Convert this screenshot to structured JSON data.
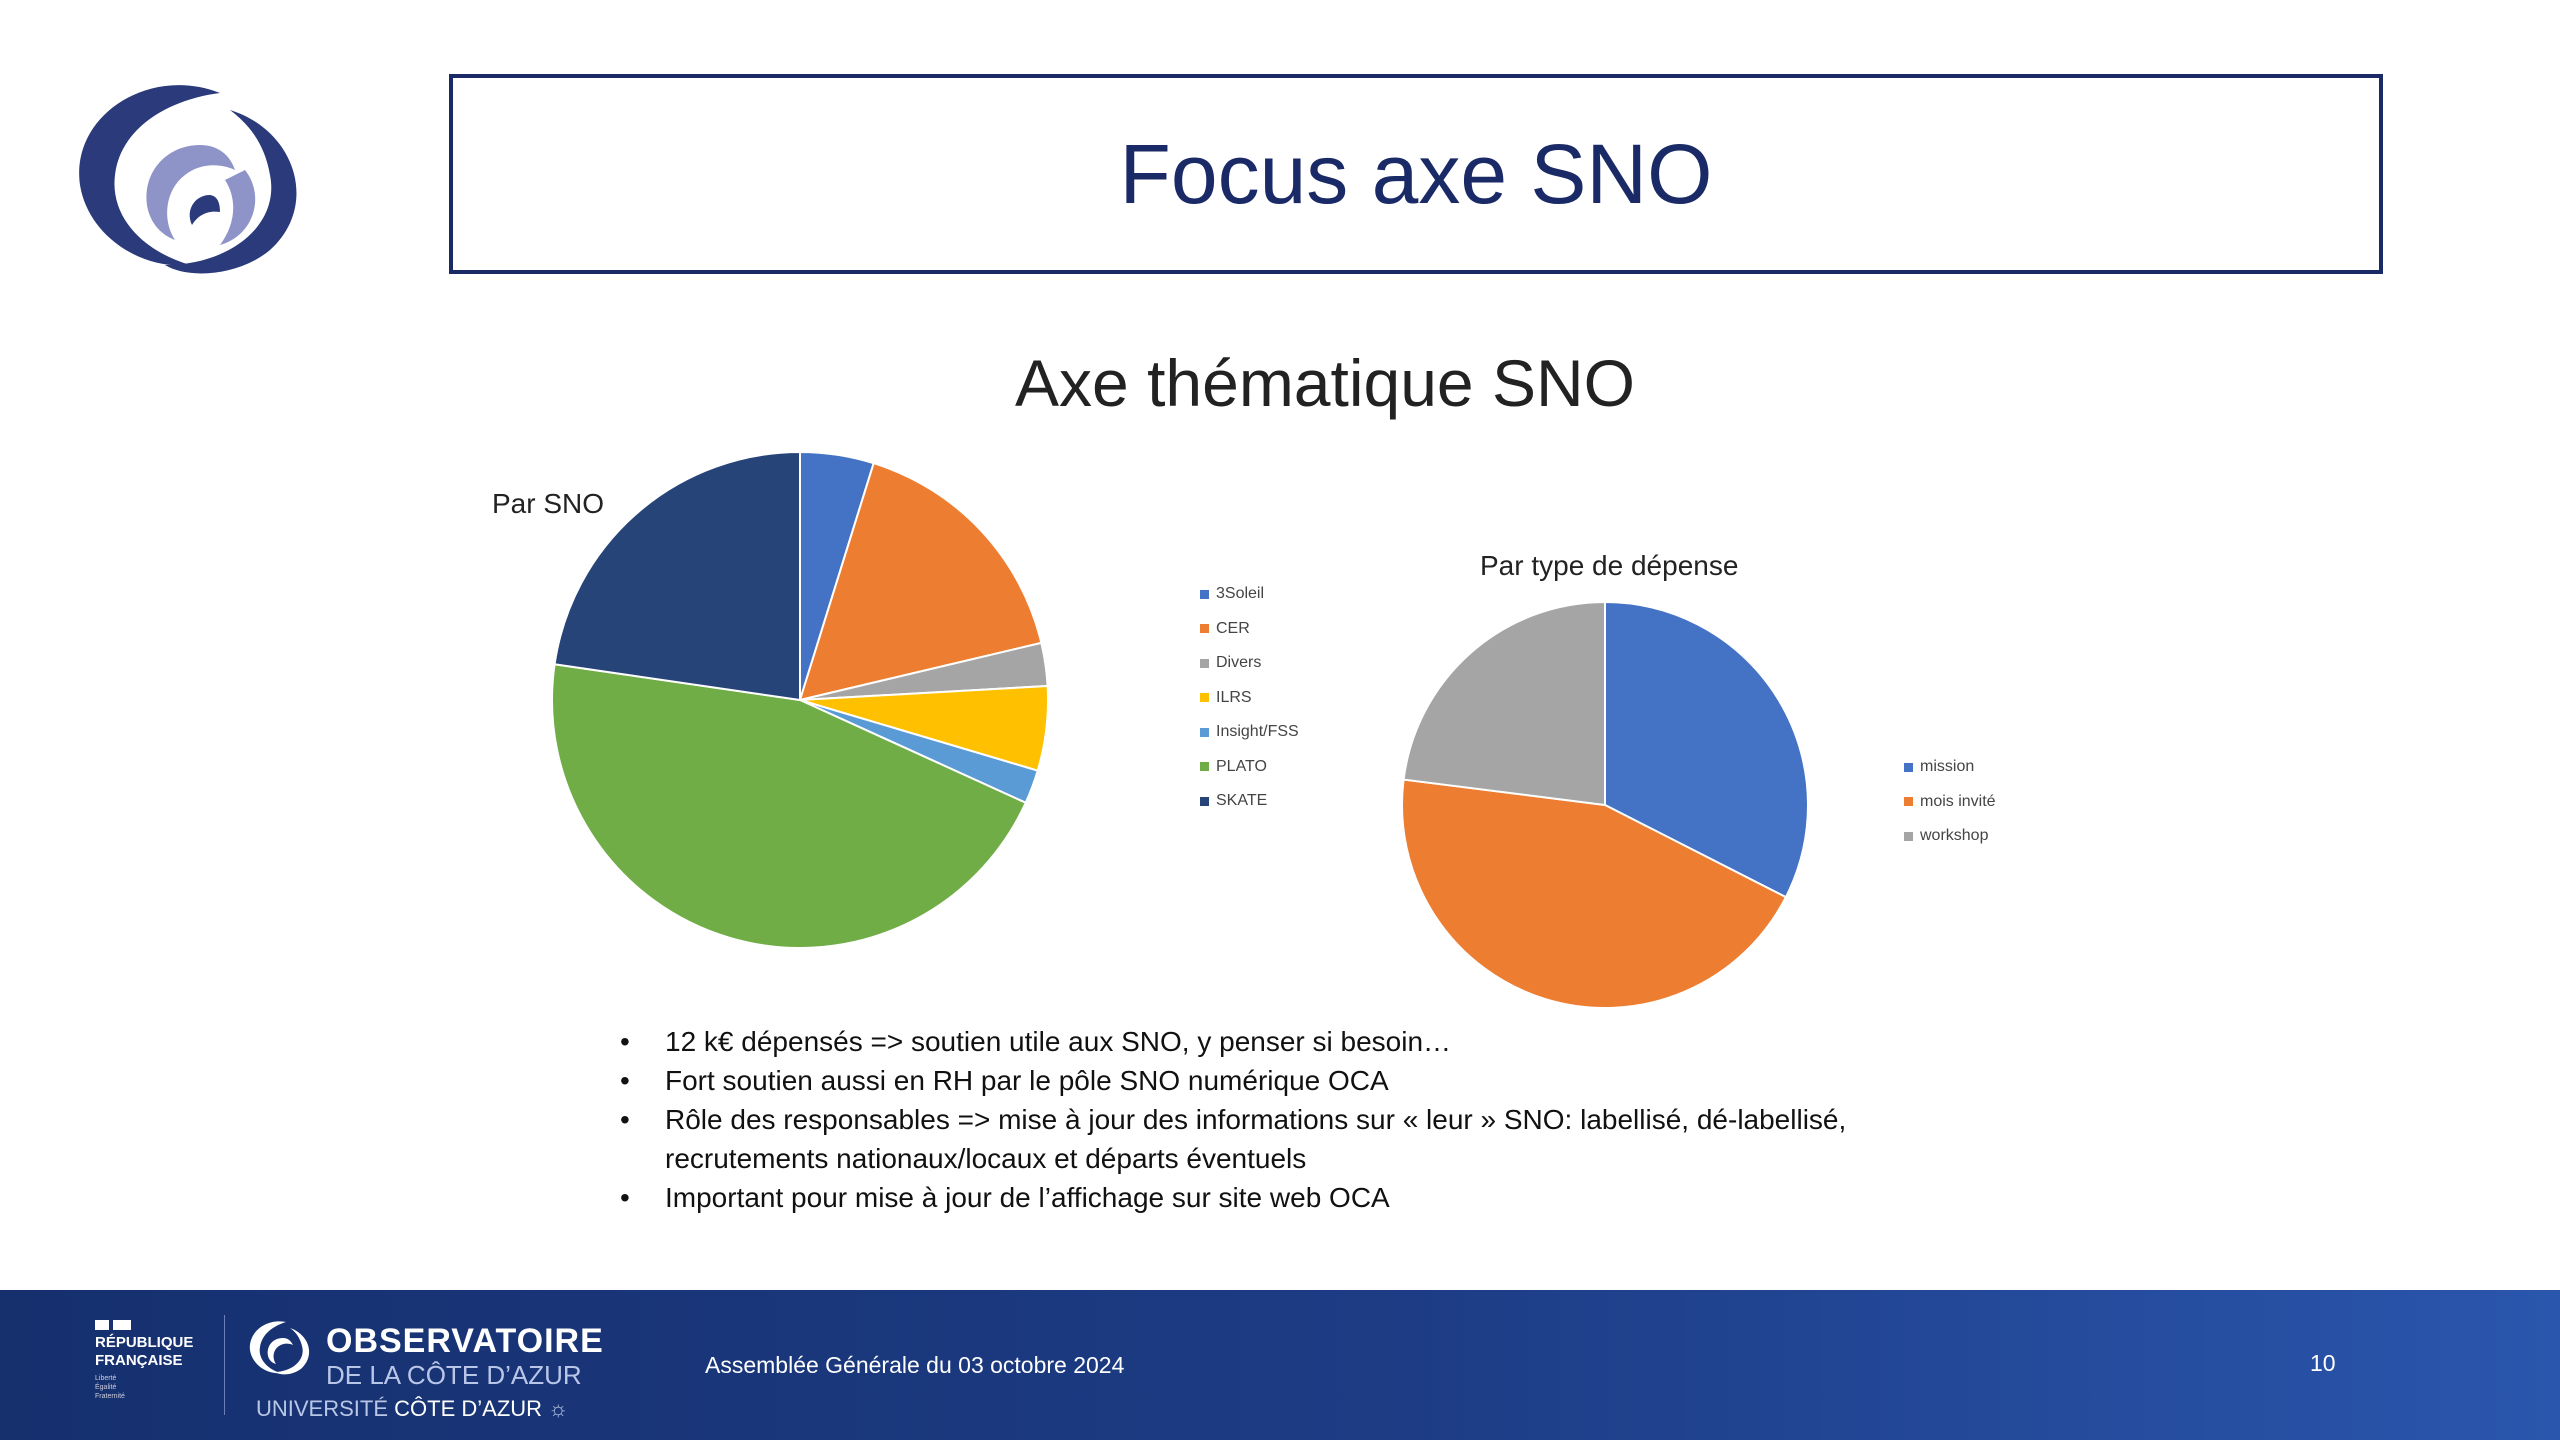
{
  "slide": {
    "title": "Focus axe SNO",
    "bullets": [
      "12 k€ dépensés => soutien utile aux SNO, y penser si besoin…",
      "Fort soutien aussi en RH par le pôle SNO numérique OCA",
      "Rôle des responsables => mise à jour des informations sur « leur » SNO: labellisé, dé-labellisé, recrutements nationaux/locaux et départs éventuels",
      "Important pour mise à jour de l’affichage sur site web OCA"
    ]
  },
  "chart_title": "Axe thématique SNO",
  "chart_data": [
    {
      "type": "pie",
      "title": "Par SNO",
      "categories": [
        "3Soleil",
        "CER",
        "Divers",
        "ILRS",
        "Insight/FSS",
        "PLATO",
        "SKATE"
      ],
      "values": [
        4.8,
        16.5,
        2.8,
        5.5,
        2.2,
        45.5,
        22.7
      ],
      "colors": [
        "#4472c4",
        "#ed7d31",
        "#a5a5a5",
        "#ffc000",
        "#5b9bd5",
        "#70ad47",
        "#264478"
      ],
      "legend": "right"
    },
    {
      "type": "pie",
      "title": "Par type de dépense",
      "categories": [
        "mission",
        "mois invité",
        "workshop"
      ],
      "values": [
        32.5,
        44.5,
        23.0
      ],
      "colors": [
        "#4472c4",
        "#ed7d31",
        "#a5a5a5"
      ],
      "legend": "right"
    }
  ],
  "footer": {
    "republique": [
      "RÉPUBLIQUE",
      "FRANÇAISE"
    ],
    "republique_motto": [
      "Liberté",
      "Égalité",
      "Fraternité"
    ],
    "oca_line1": "OBSERVATOIRE",
    "oca_line2": "DE LA CÔTE D’AZUR",
    "oca_line3_prefix": "UNIVERSITÉ",
    "oca_line3_suffix": "CÔTE D’AZUR",
    "event": "Assemblée Générale du 03 octobre 2024",
    "page_number": "10"
  },
  "colors": {
    "title_border": "#1a2a66",
    "footer_bg": "#1d3c85"
  }
}
